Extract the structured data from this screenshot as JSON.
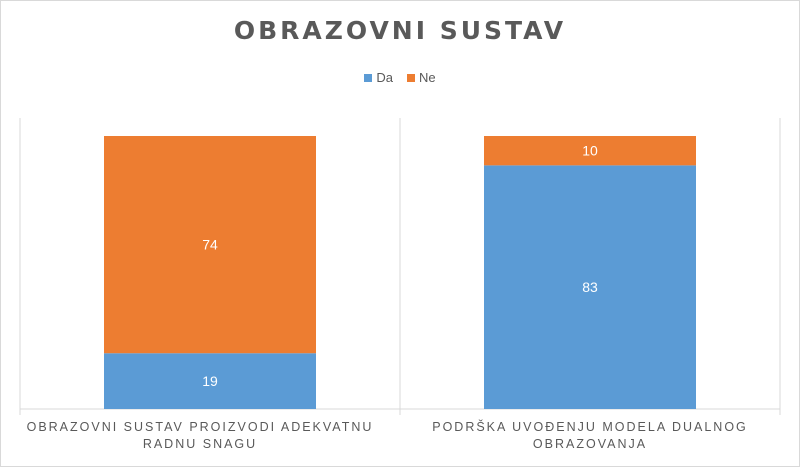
{
  "chart_data": {
    "type": "bar",
    "stacked": true,
    "title": "OBRAZOVNI SUSTAV",
    "categories": [
      "OBRAZOVNI SUSTAV PROIZVODI ADEKVATNU RADNU SNAGU",
      "PODRŠKA UVOĐENJU MODELA DUALNOG OBRAZOVANJA"
    ],
    "series": [
      {
        "name": "Da",
        "values": [
          19,
          83
        ],
        "color": "#5b9bd5"
      },
      {
        "name": "Ne",
        "values": [
          74,
          10
        ],
        "color": "#ed7d31"
      }
    ],
    "ylim": [
      0,
      100
    ],
    "legend_position": "top",
    "grid": false,
    "data_labels": true
  },
  "legend": [
    {
      "label": "Da",
      "color": "#5b9bd5"
    },
    {
      "label": "Ne",
      "color": "#ed7d31"
    }
  ]
}
